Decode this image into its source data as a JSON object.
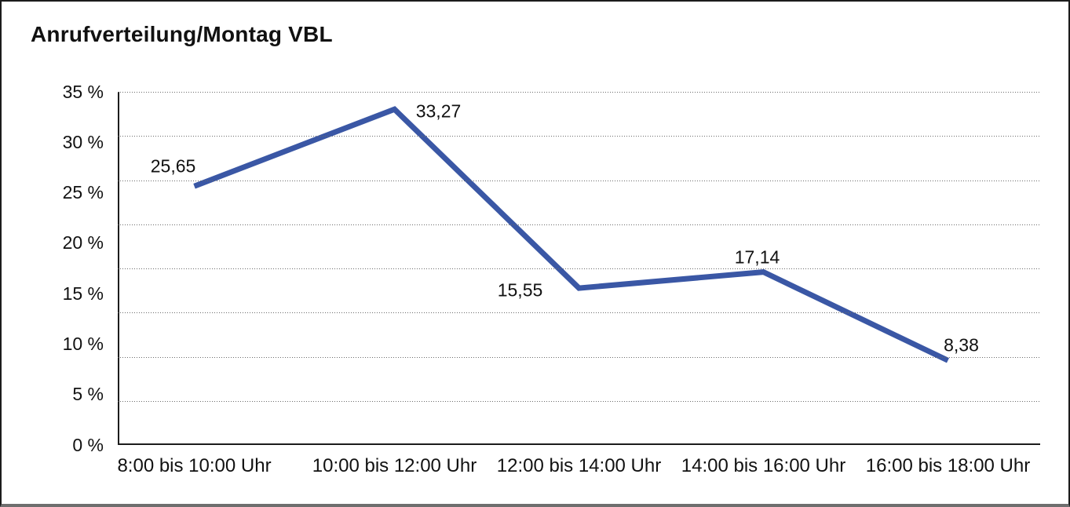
{
  "colors": {
    "line": "#3A57A5",
    "axis": "#1c1c1c",
    "grid": "#6a6a6a",
    "text": "#111111",
    "frame_border": "#1b1b1b",
    "background": "#ffffff"
  },
  "chart_data": {
    "type": "line",
    "title": "Anrufverteilung/Montag VBL",
    "categories": [
      "8:00 bis 10:00 Uhr",
      "10:00 bis 12:00 Uhr",
      "12:00 bis 14:00 Uhr",
      "14:00 bis 16:00 Uhr",
      "16:00 bis 18:00 Uhr"
    ],
    "values": [
      25.65,
      33.27,
      15.55,
      17.14,
      8.38
    ],
    "value_labels": [
      "25,65",
      "33,27",
      "15,55",
      "17,14",
      "8,38"
    ],
    "y_ticks": [
      "35 %",
      "30 %",
      "25 %",
      "20 %",
      "15 %",
      "10 %",
      "5 %",
      "0 %"
    ],
    "ylim": [
      0,
      35
    ],
    "y_tick_step": 5,
    "xlabel": "",
    "ylabel": "",
    "grid": "horizontal-dotted",
    "legend": "none"
  }
}
